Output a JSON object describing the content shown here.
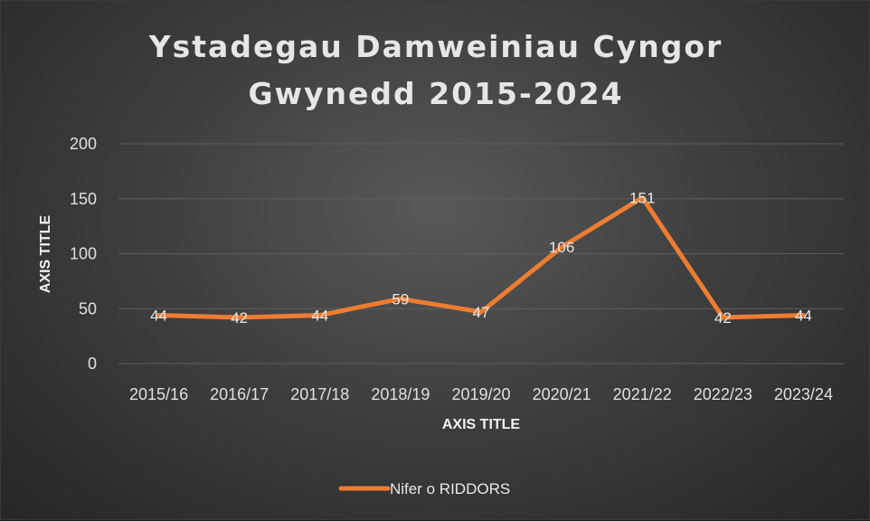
{
  "chart_data": {
    "type": "line",
    "title_lines": [
      "Ystadegau Damweiniau Cyngor",
      "Gwynedd 2015-2024"
    ],
    "xlabel": "AXIS TITLE",
    "ylabel": "AXIS TITLE",
    "categories": [
      "2015/16",
      "2016/17",
      "2017/18",
      "2018/19",
      "2019/20",
      "2020/21",
      "2021/22",
      "2022/23",
      "2023/24"
    ],
    "series": [
      {
        "name": "Nifer o RIDDORS",
        "values": [
          44,
          42,
          44,
          59,
          47,
          106,
          151,
          42,
          44
        ],
        "color": "#ed7d31"
      }
    ],
    "yticks": [
      0,
      50,
      100,
      150,
      200
    ],
    "ylim": [
      0,
      200
    ],
    "grid": true,
    "legend_position": "bottom",
    "data_labels": true
  }
}
